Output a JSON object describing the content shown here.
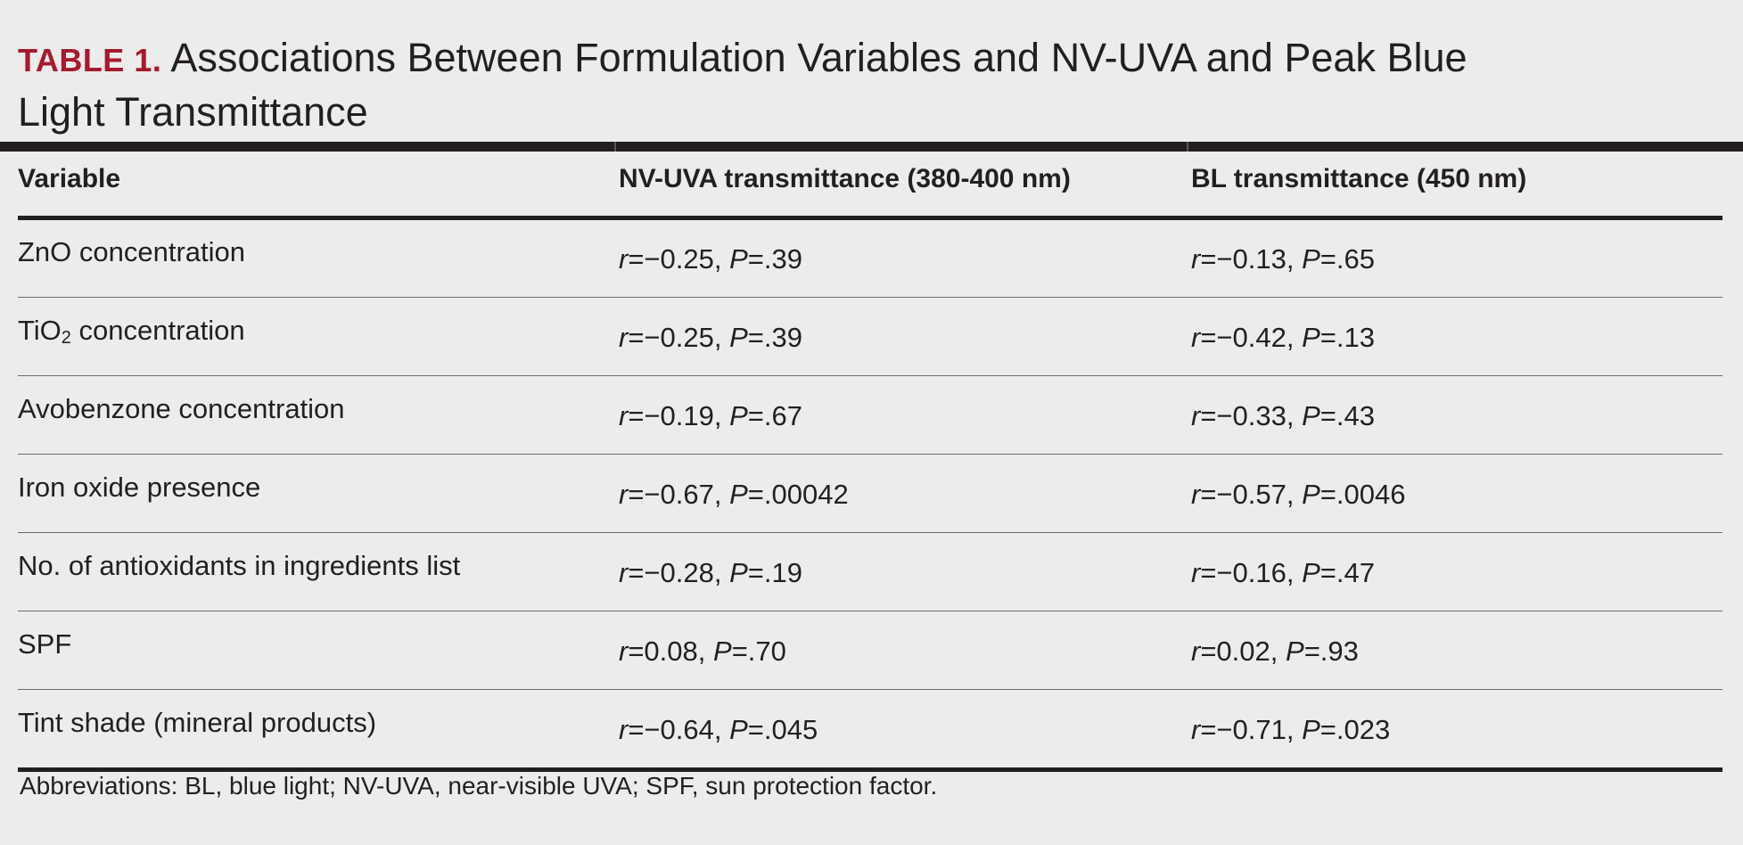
{
  "title": {
    "label": "TABLE 1.",
    "text": "Associations Between Formulation Variables and NV-UVA and Peak Blue Light Transmittance"
  },
  "columns": [
    "Variable",
    "NV-UVA transmittance (380-400 nm)",
    "BL transmittance (450 nm)"
  ],
  "rows": [
    {
      "variable": "ZnO concentration",
      "nvuva": {
        "r": "=−0.25, ",
        "p": "=.39"
      },
      "bl": {
        "r": "=−0.13, ",
        "p": "=.65"
      }
    },
    {
      "variable_main": "TiO",
      "variable_sub": "2",
      "variable_rest": " concentration",
      "nvuva": {
        "r": "=−0.25, ",
        "p": "=.39"
      },
      "bl": {
        "r": "=−0.42, ",
        "p": "=.13"
      }
    },
    {
      "variable": "Avobenzone concentration",
      "nvuva": {
        "r": "=−0.19, ",
        "p": "=.67"
      },
      "bl": {
        "r": "=−0.33, ",
        "p": "=.43"
      }
    },
    {
      "variable": "Iron oxide presence",
      "nvuva": {
        "r": "=−0.67, ",
        "p": "=.00042"
      },
      "bl": {
        "r": "=−0.57, ",
        "p": "=.0046"
      }
    },
    {
      "variable": "No. of antioxidants in ingredients list",
      "nvuva": {
        "r": "=−0.28, ",
        "p": "=.19"
      },
      "bl": {
        "r": "=−0.16, ",
        "p": "=.47"
      }
    },
    {
      "variable": "SPF",
      "nvuva": {
        "r": "=0.08, ",
        "p": "=.70"
      },
      "bl": {
        "r": "=0.02, ",
        "p": "=.93"
      }
    },
    {
      "variable": "Tint shade (mineral products)",
      "nvuva": {
        "r": "=−0.64, ",
        "p": "=.045"
      },
      "bl": {
        "r": "=−0.71, ",
        "p": "=.023"
      }
    }
  ],
  "stat_letters": {
    "r": "r",
    "p": "P"
  },
  "footnote": "Abbreviations: BL, blue light; NV-UVA, near-visible UVA; SPF, sun protection factor.",
  "colors": {
    "label_red": "#a6192e",
    "text": "#231f20",
    "background": "#ececec"
  }
}
